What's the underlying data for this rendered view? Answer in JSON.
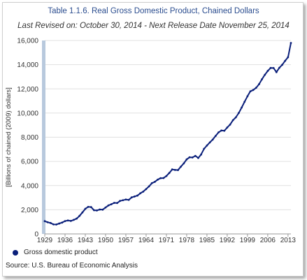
{
  "chart_data": {
    "type": "line",
    "title": "Table 1.1.6. Real Gross Domestic Product, Chained Dollars",
    "subtitle": "Last Revised on: October 30, 2014 - Next Release Date November 25, 2014",
    "ylabel": "[Billions of chained (2009) dollars]",
    "xlabel": "",
    "ylim": [
      0,
      16000
    ],
    "yticks": [
      "0",
      "2,000",
      "4,000",
      "6,000",
      "8,000",
      "10,000",
      "12,000",
      "14,000",
      "16,000"
    ],
    "xticks": [
      "1929",
      "1936",
      "1943",
      "1950",
      "1957",
      "1964",
      "1971",
      "1978",
      "1985",
      "1992",
      "1999",
      "2006",
      "2013"
    ],
    "grid": true,
    "legend_position": "bottom-left",
    "color": "#0a1f7a",
    "series": [
      {
        "name": "Gross domestic product",
        "x": [
          1929,
          1930,
          1931,
          1932,
          1933,
          1934,
          1935,
          1936,
          1937,
          1938,
          1939,
          1940,
          1941,
          1942,
          1943,
          1944,
          1945,
          1946,
          1947,
          1948,
          1949,
          1950,
          1951,
          1952,
          1953,
          1954,
          1955,
          1956,
          1957,
          1958,
          1959,
          1960,
          1961,
          1962,
          1963,
          1964,
          1965,
          1966,
          1967,
          1968,
          1969,
          1970,
          1971,
          1972,
          1973,
          1974,
          1975,
          1976,
          1977,
          1978,
          1979,
          1980,
          1981,
          1982,
          1983,
          1984,
          1985,
          1986,
          1987,
          1988,
          1989,
          1990,
          1991,
          1992,
          1993,
          1994,
          1995,
          1996,
          1997,
          1998,
          1999,
          2000,
          2001,
          2002,
          2003,
          2004,
          2005,
          2006,
          2007,
          2008,
          2009,
          2010,
          2011,
          2012,
          2013,
          2014
        ],
        "values": [
          1057,
          967,
          905,
          788,
          778,
          862,
          939,
          1061,
          1114,
          1077,
          1163,
          1267,
          1491,
          1775,
          2076,
          2240,
          2219,
          1961,
          1940,
          2020,
          2009,
          2185,
          2359,
          2455,
          2570,
          2555,
          2732,
          2787,
          2846,
          2814,
          3021,
          3094,
          3173,
          3361,
          3503,
          3707,
          3936,
          4201,
          4307,
          4491,
          4612,
          4623,
          4786,
          5043,
          5334,
          5294,
          5281,
          5565,
          5836,
          6162,
          6341,
          6325,
          6455,
          6282,
          6571,
          7044,
          7314,
          7564,
          7804,
          8108,
          8397,
          8554,
          8533,
          8800,
          9046,
          9410,
          9648,
          10012,
          10457,
          10930,
          11388,
          11797,
          11910,
          12092,
          12386,
          12793,
          13162,
          13483,
          13728,
          13725,
          13381,
          13741,
          13988,
          14318,
          14622,
          15800
        ]
      }
    ],
    "source": "Source: U.S. Bureau of Economic Analysis"
  }
}
